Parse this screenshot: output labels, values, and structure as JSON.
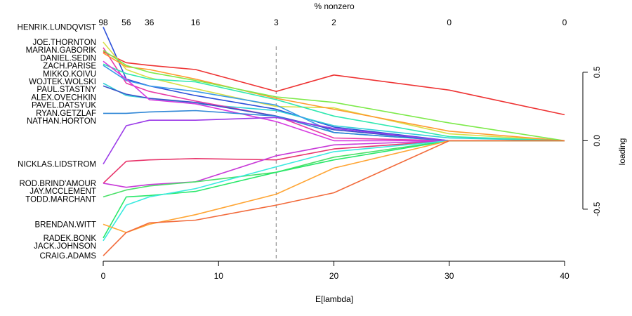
{
  "chart_data": {
    "type": "line",
    "xlabel": "E[lambda]",
    "ylabel": "loading",
    "top_label": "% nonzero",
    "xlim": [
      0,
      40
    ],
    "ylim": [
      -0.88,
      0.72
    ],
    "x_ticks": [
      0,
      10,
      20,
      30,
      40
    ],
    "y_ticks": [
      -0.5,
      0.0,
      0.5
    ],
    "y_tick_labels": [
      "-0.5",
      "0.0",
      "0.5"
    ],
    "top_ticks": [
      {
        "x": 0,
        "label": "98"
      },
      {
        "x": 2,
        "label": "56"
      },
      {
        "x": 4,
        "label": "36"
      },
      {
        "x": 8,
        "label": "16"
      },
      {
        "x": 15,
        "label": "3"
      },
      {
        "x": 20,
        "label": "2"
      },
      {
        "x": 30,
        "label": "0"
      },
      {
        "x": 40,
        "label": "0"
      }
    ],
    "reference_line_x": 15,
    "x": [
      0,
      2,
      4,
      8,
      15,
      20,
      30,
      40
    ],
    "series": [
      {
        "name": "HENRIK.LUNDQVIST",
        "color": "#2b4fd9",
        "values": [
          0.83,
          0.45,
          0.4,
          0.33,
          0.23,
          0.1,
          0.0,
          0.0
        ]
      },
      {
        "name": "ZACH.PARISE",
        "color": "#ee3333",
        "values": [
          0.65,
          0.57,
          0.55,
          0.52,
          0.36,
          0.48,
          0.37,
          0.19
        ]
      },
      {
        "name": "JOE.THORNTON",
        "color": "#d8e04a",
        "values": [
          0.72,
          0.52,
          0.46,
          0.38,
          0.25,
          0.24,
          0.05,
          0.0
        ]
      },
      {
        "name": "PAVEL.DATSYUK",
        "color": "#33d0d8",
        "values": [
          0.42,
          0.33,
          0.31,
          0.27,
          0.22,
          0.11,
          0.02,
          0.0
        ]
      },
      {
        "name": "MARIAN.GABORIK",
        "color": "#e83aa6",
        "values": [
          0.68,
          0.42,
          0.36,
          0.29,
          0.18,
          0.02,
          0.0,
          0.0
        ]
      },
      {
        "name": "MIKKO.KOIVU",
        "color": "#ff9a2e",
        "values": [
          0.64,
          0.54,
          0.52,
          0.45,
          0.31,
          0.23,
          0.07,
          0.0
        ]
      },
      {
        "name": "DANIEL.SEDIN",
        "color": "#7dea4a",
        "values": [
          0.66,
          0.55,
          0.5,
          0.44,
          0.32,
          0.28,
          0.13,
          0.0
        ]
      },
      {
        "name": "PAUL.STASTNY",
        "color": "#2fe8b0",
        "values": [
          0.56,
          0.49,
          0.45,
          0.43,
          0.3,
          0.18,
          0.03,
          0.0
        ]
      },
      {
        "name": "ALEX.OVECHKIN",
        "color": "#3a9ae8",
        "values": [
          0.55,
          0.44,
          0.4,
          0.36,
          0.26,
          0.06,
          0.0,
          0.0
        ]
      },
      {
        "name": "RYAN.GETZLAF",
        "color": "#3a52c8",
        "values": [
          0.4,
          0.34,
          0.31,
          0.28,
          0.18,
          0.08,
          0.0,
          0.0
        ]
      },
      {
        "name": "WOJTEK.WOLSKI",
        "color": "#d63ae0",
        "values": [
          0.58,
          0.45,
          0.3,
          0.27,
          0.14,
          0.0,
          0.0,
          0.0
        ]
      },
      {
        "name": "NATHAN.HORTON",
        "color": "#2f86d6",
        "values": [
          0.2,
          0.2,
          0.21,
          0.22,
          0.18,
          0.06,
          0.0,
          0.0
        ]
      },
      {
        "name": "NICKLAS.LIDSTROM",
        "color": "#9b3ae8",
        "values": [
          -0.17,
          0.11,
          0.15,
          0.15,
          0.17,
          0.09,
          0.0,
          0.0
        ]
      },
      {
        "name": "ROD.BRIND'AMOUR",
        "color": "#e8356b",
        "values": [
          -0.31,
          -0.15,
          -0.14,
          -0.13,
          -0.14,
          -0.06,
          0.0,
          0.0
        ]
      },
      {
        "name": "JAY.MCCLEMENT",
        "color": "#c83ad8",
        "values": [
          -0.31,
          -0.34,
          -0.32,
          -0.3,
          -0.11,
          -0.03,
          0.0,
          0.0
        ]
      },
      {
        "name": "TODD.MARCHANT",
        "color": "#4ae068",
        "values": [
          -0.41,
          -0.36,
          -0.33,
          -0.3,
          -0.23,
          -0.12,
          0.0,
          0.0
        ]
      },
      {
        "name": "RADEK.BONK",
        "color": "#29e86a",
        "values": [
          -0.71,
          -0.41,
          -0.4,
          -0.37,
          -0.23,
          -0.14,
          0.0,
          0.0
        ]
      },
      {
        "name": "JACK.JOHNSON",
        "color": "#3aeae0",
        "values": [
          -0.73,
          -0.47,
          -0.41,
          -0.35,
          -0.19,
          -0.08,
          0.0,
          0.0
        ]
      },
      {
        "name": "BRENDAN.WITT",
        "color": "#ffa534",
        "values": [
          -0.61,
          -0.67,
          -0.61,
          -0.54,
          -0.39,
          -0.2,
          0.0,
          0.0
        ]
      },
      {
        "name": "CRAIG.ADAMS",
        "color": "#f26a3a",
        "values": [
          -0.84,
          -0.67,
          -0.6,
          -0.58,
          -0.47,
          -0.38,
          0.0,
          0.0
        ]
      }
    ]
  }
}
